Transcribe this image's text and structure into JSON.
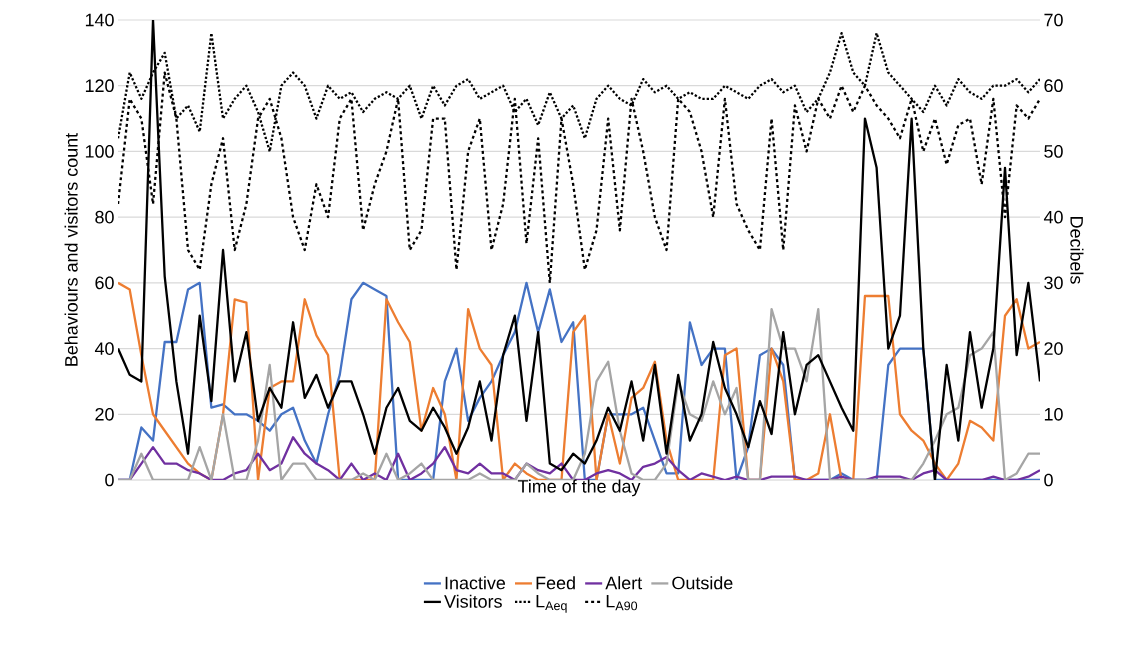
{
  "chart_data": {
    "type": "line",
    "xlabel": "Time of the day",
    "ylabel": "Behaviours and visitors count",
    "y2label": "Decibels",
    "categories": [
      null,
      null,
      null,
      null,
      null,
      null,
      null,
      null,
      null,
      null,
      null,
      null,
      null,
      null,
      null,
      null,
      null,
      null,
      null,
      null,
      null,
      null,
      null,
      null,
      null,
      null,
      null,
      null,
      null,
      null,
      null,
      null,
      null,
      null,
      null,
      null,
      null,
      null,
      null,
      null,
      null,
      null,
      null,
      null,
      null,
      null,
      null,
      null,
      null,
      null,
      null,
      null,
      null,
      null,
      null,
      null,
      null,
      null,
      null,
      null,
      null,
      null,
      null,
      null,
      null,
      null,
      null,
      null,
      null,
      null,
      null,
      null,
      null,
      null,
      null,
      null,
      null,
      null,
      null,
      null
    ],
    "ylim": [
      0,
      140
    ],
    "yticks": [
      0,
      20,
      40,
      60,
      80,
      100,
      120,
      140
    ],
    "y2lim": [
      0,
      70
    ],
    "y2ticks": [
      0,
      10,
      20,
      30,
      40,
      50,
      60,
      70
    ],
    "grid": "y",
    "legend": "bottom",
    "series": [
      {
        "name": "Inactive",
        "color": "#4472c4",
        "line_style": "solid",
        "values": [
          0,
          0,
          16,
          12,
          42,
          42,
          58,
          60,
          22,
          23,
          20,
          20,
          18,
          15,
          20,
          22,
          12,
          5,
          20,
          32,
          55,
          60,
          58,
          56,
          0,
          0,
          0,
          0,
          30,
          40,
          18,
          25,
          30,
          38,
          45,
          60,
          45,
          58,
          42,
          48,
          0,
          0,
          20,
          20,
          20,
          22,
          12,
          2,
          2,
          48,
          35,
          40,
          40,
          0,
          10,
          38,
          40,
          35,
          0,
          0,
          0,
          0,
          2,
          0,
          0,
          0,
          35,
          40,
          40,
          40,
          0,
          0,
          0,
          0,
          0,
          0,
          0,
          0,
          0,
          0
        ]
      },
      {
        "name": "Feed",
        "color": "#ed7d31",
        "line_style": "solid",
        "values": [
          60,
          58,
          38,
          20,
          15,
          10,
          5,
          2,
          0,
          20,
          55,
          54,
          0,
          28,
          30,
          30,
          55,
          44,
          38,
          0,
          0,
          0,
          0,
          55,
          48,
          42,
          15,
          28,
          20,
          0,
          52,
          40,
          35,
          0,
          5,
          2,
          0,
          0,
          0,
          45,
          50,
          0,
          20,
          5,
          25,
          28,
          36,
          12,
          0,
          0,
          0,
          0,
          38,
          40,
          0,
          0,
          40,
          30,
          0,
          0,
          2,
          20,
          0,
          0,
          56,
          56,
          56,
          20,
          15,
          12,
          5,
          0,
          5,
          18,
          16,
          12,
          50,
          55,
          40,
          42
        ]
      },
      {
        "name": "Alert",
        "color": "#7030a0",
        "line_style": "solid",
        "values": [
          0,
          0,
          5,
          10,
          5,
          5,
          3,
          2,
          0,
          0,
          2,
          3,
          8,
          3,
          5,
          13,
          8,
          5,
          3,
          0,
          5,
          0,
          2,
          0,
          8,
          0,
          2,
          5,
          10,
          3,
          2,
          5,
          2,
          2,
          0,
          5,
          3,
          2,
          5,
          0,
          0,
          2,
          3,
          2,
          0,
          4,
          5,
          7,
          3,
          0,
          2,
          1,
          0,
          1,
          0,
          0,
          1,
          1,
          1,
          0,
          0,
          0,
          1,
          0,
          0,
          1,
          1,
          1,
          0,
          2,
          3,
          0,
          0,
          0,
          0,
          1,
          0,
          0,
          1,
          3
        ]
      },
      {
        "name": "Outside",
        "color": "#a5a5a5",
        "line_style": "solid",
        "values": [
          0,
          0,
          8,
          0,
          0,
          0,
          0,
          10,
          0,
          20,
          0,
          0,
          12,
          35,
          0,
          5,
          5,
          0,
          0,
          0,
          0,
          2,
          0,
          8,
          0,
          2,
          5,
          0,
          0,
          0,
          0,
          2,
          0,
          0,
          0,
          5,
          2,
          0,
          0,
          0,
          8,
          30,
          36,
          15,
          2,
          0,
          0,
          5,
          30,
          20,
          18,
          30,
          20,
          28,
          0,
          0,
          52,
          40,
          40,
          30,
          52,
          0,
          0,
          0,
          0,
          0,
          0,
          0,
          0,
          5,
          12,
          20,
          22,
          38,
          40,
          45,
          0,
          2,
          8,
          8
        ]
      },
      {
        "name": "Visitors",
        "color": "#000000",
        "line_style": "solid",
        "values": [
          40,
          32,
          30,
          140,
          62,
          30,
          8,
          50,
          24,
          70,
          30,
          45,
          18,
          28,
          22,
          48,
          25,
          32,
          22,
          30,
          30,
          20,
          8,
          22,
          28,
          18,
          15,
          22,
          16,
          8,
          16,
          30,
          12,
          38,
          50,
          18,
          45,
          5,
          3,
          8,
          5,
          12,
          22,
          15,
          30,
          12,
          35,
          8,
          32,
          12,
          20,
          42,
          28,
          20,
          10,
          24,
          14,
          45,
          20,
          35,
          38,
          30,
          22,
          15,
          110,
          95,
          40,
          50,
          110,
          40,
          0,
          35,
          12,
          45,
          22,
          40,
          95,
          38,
          60,
          30
        ]
      },
      {
        "name": "L$_{Aeq}$",
        "color": "#000000",
        "line_style": "dotted",
        "axis": "y2",
        "values": [
          52,
          62,
          58,
          62,
          65,
          55,
          57,
          53,
          68,
          55,
          58,
          60,
          56,
          50,
          60,
          62,
          60,
          55,
          60,
          58,
          59,
          56,
          58,
          59,
          58,
          60,
          55,
          60,
          57,
          60,
          61,
          58,
          59,
          60,
          56,
          58,
          54,
          59,
          55,
          57,
          52,
          58,
          60,
          58,
          57,
          61,
          59,
          60,
          58,
          59,
          58,
          58,
          60,
          59,
          58,
          60,
          61,
          59,
          60,
          56,
          58,
          62,
          68,
          62,
          60,
          68,
          62,
          60,
          58,
          56,
          60,
          57,
          61,
          59,
          58,
          60,
          60,
          61,
          59,
          61
        ]
      },
      {
        "name": "L$_{A90}$",
        "color": "#000000",
        "line_style": "dashed",
        "axis": "y2",
        "values": [
          42,
          58,
          55,
          42,
          62,
          55,
          35,
          32,
          45,
          52,
          35,
          42,
          55,
          58,
          52,
          40,
          35,
          45,
          40,
          55,
          58,
          38,
          45,
          50,
          58,
          35,
          38,
          55,
          55,
          32,
          50,
          55,
          35,
          42,
          58,
          36,
          52,
          30,
          55,
          45,
          32,
          38,
          55,
          38,
          58,
          50,
          40,
          35,
          58,
          56,
          50,
          40,
          58,
          42,
          38,
          35,
          55,
          35,
          57,
          50,
          58,
          55,
          60,
          56,
          60,
          57,
          55,
          52,
          58,
          50,
          55,
          48,
          54,
          55,
          45,
          58,
          40,
          57,
          55,
          58
        ]
      }
    ]
  }
}
